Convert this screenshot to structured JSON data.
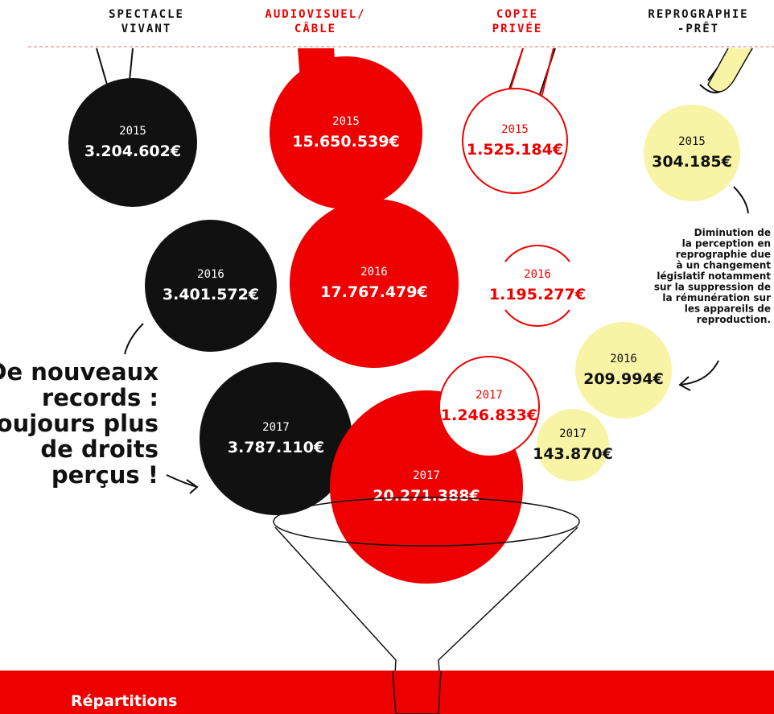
{
  "columns": [
    {
      "label": [
        "SPECTACLE",
        "VIVANT"
      ],
      "entries": [
        {
          "year": "2015",
          "amount": "3.204.602€"
        },
        {
          "year": "2016",
          "amount": "3.401.572€"
        },
        {
          "year": "2017",
          "amount": "3.787.110€"
        }
      ]
    },
    {
      "label": [
        "AUDIOVISUEL/",
        "CÂBLE"
      ],
      "entries": [
        {
          "year": "2015",
          "amount": "15.650.539€"
        },
        {
          "year": "2016",
          "amount": "17.767.479€"
        },
        {
          "year": "2017",
          "amount": "20.271.388€"
        }
      ]
    },
    {
      "label": [
        "COPIE",
        "PRIVÉE"
      ],
      "entries": [
        {
          "year": "2015",
          "amount": "1.525.184€"
        },
        {
          "year": "2016",
          "amount": "1.195.277€"
        },
        {
          "year": "2017",
          "amount": "1.246.833€"
        }
      ]
    },
    {
      "label": [
        "REPROGRAPHIE",
        "-PRÊT"
      ],
      "entries": [
        {
          "year": "2015",
          "amount": "304.185€"
        },
        {
          "year": "2016",
          "amount": "209.994€"
        },
        {
          "year": "2017",
          "amount": "143.870€"
        }
      ]
    }
  ],
  "note": [
    "Diminution de",
    "la perception en",
    "reprographie due",
    "à un changement",
    "législatif notamment",
    "sur la suppression de",
    "la rémunération sur",
    "les appareils de",
    "reproduction."
  ],
  "headline": [
    "De nouveaux",
    "records :",
    "toujours plus",
    "de droits",
    "perçus !"
  ],
  "footer": "Répartitions"
}
